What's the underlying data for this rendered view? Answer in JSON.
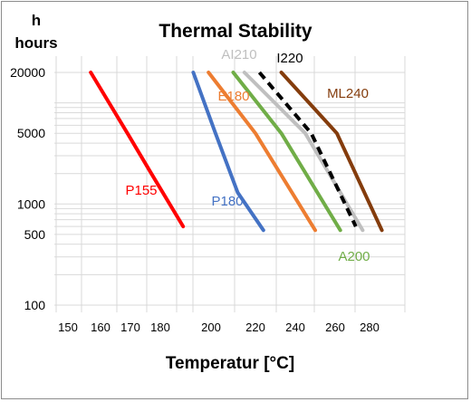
{
  "chart_data": {
    "type": "line",
    "title": "Thermal Stability",
    "ylabel_line1": "h",
    "ylabel_line2": "hours",
    "xlabel": "Temperatur [°C]",
    "y_scale": "log",
    "ylim": [
      100,
      20000
    ],
    "y_ticks": [
      {
        "value": 20000,
        "label": "20000"
      },
      {
        "value": 5000,
        "label": "5000"
      },
      {
        "value": 1000,
        "label": "1000"
      },
      {
        "value": 500,
        "label": "500"
      },
      {
        "value": 100,
        "label": "100"
      }
    ],
    "x_ticks": [
      {
        "value": 150,
        "label": "150"
      },
      {
        "value": 160,
        "label": "160"
      },
      {
        "value": 170,
        "label": "170"
      },
      {
        "value": 180,
        "label": "180"
      },
      {
        "value": 200,
        "label": "200"
      },
      {
        "value": 220,
        "label": "220"
      },
      {
        "value": 240,
        "label": "240"
      },
      {
        "value": 260,
        "label": "260"
      },
      {
        "value": 280,
        "label": "280"
      }
    ],
    "grid": true,
    "series": [
      {
        "name": "P155",
        "color": "#ff0000",
        "dashed": false,
        "points": [
          [
            157,
            20000
          ],
          [
            169,
            5000
          ],
          [
            177,
            2000
          ],
          [
            189,
            600
          ]
        ]
      },
      {
        "name": "P180",
        "color": "#4472c4",
        "dashed": false,
        "points": [
          [
            193,
            20000
          ],
          [
            202,
            5000
          ],
          [
            212,
            1300
          ],
          [
            224,
            550
          ]
        ]
      },
      {
        "name": "E180",
        "color": "#ed7d31",
        "dashed": false,
        "points": [
          [
            199,
            20000
          ],
          [
            220,
            5000
          ],
          [
            250,
            550
          ]
        ]
      },
      {
        "name": "A200",
        "color": "#70ad47",
        "dashed": false,
        "points": [
          [
            210,
            20000
          ],
          [
            233,
            5000
          ],
          [
            263,
            550
          ]
        ]
      },
      {
        "name": "AI210",
        "color": "#bfbfbf",
        "dashed": false,
        "points": [
          [
            215,
            20000
          ],
          [
            245,
            5000
          ],
          [
            276,
            550
          ]
        ]
      },
      {
        "name": "I220",
        "color": "#000000",
        "dashed": true,
        "points": [
          [
            222,
            20000
          ],
          [
            248,
            5000
          ],
          [
            272,
            600
          ]
        ]
      },
      {
        "name": "ML240",
        "color": "#843c0c",
        "dashed": false,
        "points": [
          [
            233,
            20000
          ],
          [
            261,
            5000
          ],
          [
            288,
            550
          ]
        ]
      }
    ]
  }
}
